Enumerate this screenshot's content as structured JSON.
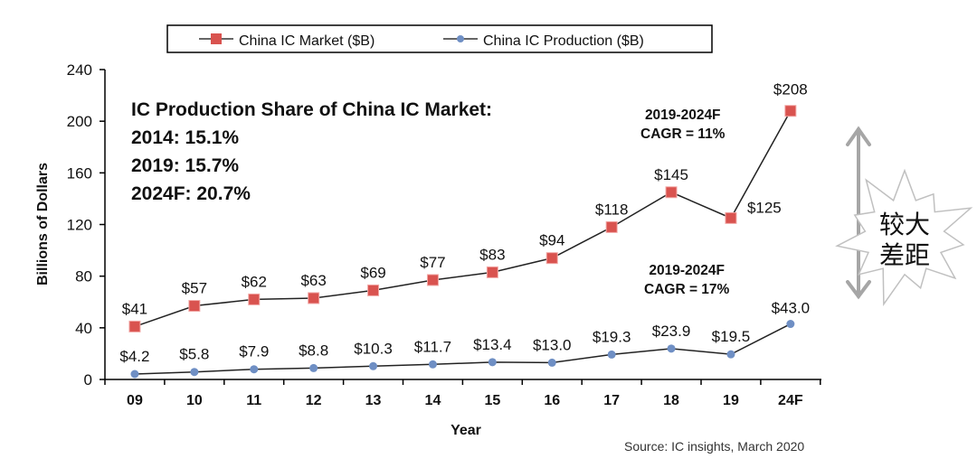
{
  "chart_data": {
    "type": "line",
    "categories": [
      "09",
      "10",
      "11",
      "12",
      "13",
      "14",
      "15",
      "16",
      "17",
      "18",
      "19",
      "24F"
    ],
    "series": [
      {
        "name": "China IC Market ($B)",
        "color": "#d9534f",
        "values": [
          41,
          57,
          62,
          63,
          69,
          77,
          83,
          94,
          118,
          145,
          125,
          208
        ],
        "labels": [
          "$41",
          "$57",
          "$62",
          "$63",
          "$69",
          "$77",
          "$83",
          "$94",
          "$118",
          "$145",
          "$125",
          "$208"
        ]
      },
      {
        "name": "China IC Production ($B)",
        "color": "#6f8fc4",
        "values": [
          4.2,
          5.8,
          7.9,
          8.8,
          10.3,
          11.7,
          13.4,
          13.0,
          19.3,
          23.9,
          19.5,
          43.0
        ],
        "labels": [
          "$4.2",
          "$5.8",
          "$7.9",
          "$8.8",
          "$10.3",
          "$11.7",
          "$13.4",
          "$13.0",
          "$19.3",
          "$23.9",
          "$19.5",
          "$43.0"
        ]
      }
    ],
    "xlabel": "Year",
    "ylabel": "Billions of Dollars",
    "ylim": [
      0,
      240
    ],
    "yticks": [
      0,
      40,
      80,
      120,
      160,
      200,
      240
    ],
    "grid": false,
    "legend": "top"
  },
  "annotations": {
    "share_title": "IC Production Share of China IC Market:",
    "share_lines": [
      "2014: 15.1%",
      "2019: 15.7%",
      "2024F: 20.7%"
    ],
    "cagr_market": [
      "2019-2024F",
      "CAGR = 11%"
    ],
    "cagr_production": [
      "2019-2024F",
      "CAGR = 17%"
    ],
    "callout": [
      "较大",
      "差距"
    ],
    "source": "Source: IC insights, March 2020"
  }
}
